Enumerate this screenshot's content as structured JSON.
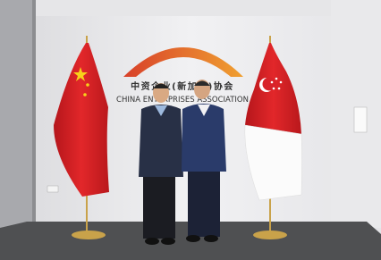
{
  "sign": {
    "chinese": "中资企业(新加坡)协会",
    "english": "CHINA ENTERPRISES ASSOCIATION"
  }
}
